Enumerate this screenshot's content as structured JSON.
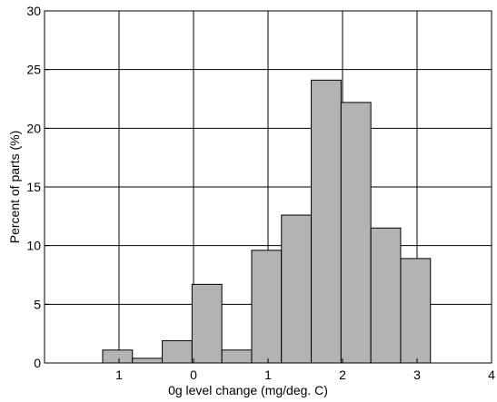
{
  "chart_data": {
    "type": "bar",
    "title": "",
    "xlabel": "0g level change (mg/deg. C)",
    "ylabel": "Percent of parts (%)",
    "xlim": [
      -2,
      4
    ],
    "ylim": [
      0,
      30
    ],
    "x_ticks": [
      -2,
      -1,
      0,
      1,
      2,
      3,
      4
    ],
    "x_tick_labels": [
      "1",
      "0",
      "1",
      "2",
      "3",
      "4"
    ],
    "x_tick_label_positions": [
      -1,
      0,
      1,
      2,
      3,
      4
    ],
    "y_ticks": [
      0,
      5,
      10,
      15,
      20,
      25,
      30
    ],
    "y_tick_labels": [
      "0",
      "5",
      "10",
      "15",
      "20",
      "25",
      "30"
    ],
    "grid": true,
    "bar_fill": "#b3b3b3",
    "bar_stroke": "#000000",
    "bin_width": 0.4,
    "bins": [
      {
        "left": -1.22,
        "value": 1.1
      },
      {
        "left": -0.82,
        "value": 0.4
      },
      {
        "left": -0.42,
        "value": 1.9
      },
      {
        "left": -0.02,
        "value": 6.7
      },
      {
        "left": 0.38,
        "value": 1.1
      },
      {
        "left": 0.78,
        "value": 9.6
      },
      {
        "left": 1.18,
        "value": 12.6
      },
      {
        "left": 1.58,
        "value": 24.1
      },
      {
        "left": 1.98,
        "value": 22.2
      },
      {
        "left": 2.38,
        "value": 11.5
      },
      {
        "left": 2.78,
        "value": 8.9
      }
    ]
  }
}
